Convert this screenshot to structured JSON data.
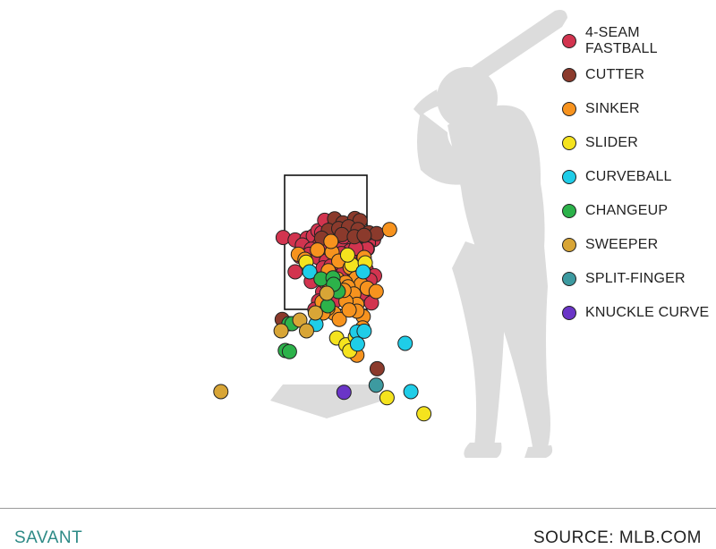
{
  "chart_data": {
    "type": "scatter",
    "title": "",
    "xlabel": "",
    "ylabel": "",
    "legend_position": "top-right",
    "background": "batter silhouette with strike zone and home plate",
    "series": [
      {
        "name": "4-SEAM FASTBALL",
        "color": "#d2344f",
        "points": [
          [
            -0.82,
            3.51
          ],
          [
            -0.59,
            3.44
          ],
          [
            -0.36,
            3.49
          ],
          [
            -0.24,
            3.55
          ],
          [
            -0.15,
            3.7
          ],
          [
            -0.08,
            3.64
          ],
          [
            0.08,
            3.88
          ],
          [
            0.18,
            3.92
          ],
          [
            0.29,
            3.86
          ],
          [
            0.38,
            3.82
          ],
          [
            -0.02,
            3.99
          ],
          [
            0.12,
            3.76
          ],
          [
            0.2,
            3.67
          ],
          [
            0.32,
            3.69
          ],
          [
            0.45,
            3.72
          ],
          [
            0.53,
            3.62
          ],
          [
            0.62,
            3.58
          ],
          [
            0.74,
            3.49
          ],
          [
            0.84,
            3.54
          ],
          [
            0.92,
            3.45
          ],
          [
            -0.12,
            3.31
          ],
          [
            0.06,
            3.35
          ],
          [
            0.22,
            3.28
          ],
          [
            0.37,
            3.42
          ],
          [
            0.52,
            3.36
          ],
          [
            0.68,
            3.31
          ],
          [
            0.82,
            3.36
          ],
          [
            -0.45,
            3.3
          ],
          [
            -0.28,
            3.18
          ],
          [
            -0.06,
            3.17
          ],
          [
            0.15,
            3.09
          ],
          [
            0.32,
            3.19
          ],
          [
            0.47,
            3.14
          ],
          [
            0.65,
            3.17
          ],
          [
            0.8,
            3.19
          ],
          [
            -0.5,
            2.98
          ],
          [
            -0.32,
            3.04
          ],
          [
            -0.15,
            2.95
          ],
          [
            0.01,
            2.85
          ],
          [
            0.24,
            2.9
          ],
          [
            0.41,
            2.92
          ],
          [
            0.63,
            2.9
          ],
          [
            0.73,
            2.99
          ],
          [
            -0.05,
            2.66
          ],
          [
            0.1,
            2.71
          ],
          [
            0.26,
            2.58
          ],
          [
            0.45,
            2.61
          ],
          [
            0.6,
            2.73
          ],
          [
            0.78,
            2.61
          ],
          [
            0.94,
            2.44
          ],
          [
            -0.28,
            2.28
          ],
          [
            0.0,
            2.4
          ],
          [
            0.12,
            2.45
          ],
          [
            0.34,
            2.52
          ],
          [
            0.55,
            2.37
          ],
          [
            0.65,
            2.48
          ],
          [
            0.85,
            2.32
          ],
          [
            -0.59,
            2.55
          ],
          [
            -0.06,
            1.99
          ],
          [
            0.07,
            1.86
          ],
          [
            -0.14,
            1.73
          ],
          [
            0.36,
            1.81
          ],
          [
            0.5,
            1.62
          ],
          [
            0.69,
            1.94
          ],
          [
            0.88,
            1.68
          ],
          [
            0.19,
            1.75
          ],
          [
            0.28,
            2.22
          ],
          [
            -0.21,
            1.5
          ],
          [
            0.79,
            3.19
          ],
          [
            0.16,
            3.56
          ],
          [
            0.34,
            3.53
          ],
          [
            -0.02,
            2.28
          ],
          [
            0.58,
            3.21
          ],
          [
            0.3,
            3.06
          ]
        ]
      },
      {
        "name": "CUTTER",
        "color": "#8b3a2c",
        "points": [
          [
            0.17,
            4.03
          ],
          [
            0.33,
            3.92
          ],
          [
            0.56,
            4.04
          ],
          [
            0.66,
            3.98
          ],
          [
            0.05,
            3.71
          ],
          [
            0.25,
            3.76
          ],
          [
            0.44,
            3.81
          ],
          [
            0.62,
            3.73
          ],
          [
            0.83,
            3.64
          ],
          [
            0.98,
            3.62
          ],
          [
            -0.08,
            3.49
          ],
          [
            0.31,
            3.59
          ],
          [
            0.55,
            3.53
          ],
          [
            0.74,
            3.57
          ],
          [
            -0.84,
            1.22
          ],
          [
            0.99,
            -0.16
          ]
        ]
      },
      {
        "name": "SINKER",
        "color": "#f7931e",
        "points": [
          [
            1.23,
            3.73
          ],
          [
            -0.53,
            3.04
          ],
          [
            -0.16,
            3.16
          ],
          [
            0.12,
            3.1
          ],
          [
            0.25,
            2.85
          ],
          [
            0.47,
            2.67
          ],
          [
            0.58,
            2.37
          ],
          [
            0.68,
            2.2
          ],
          [
            0.8,
            2.09
          ],
          [
            0.97,
            2.0
          ],
          [
            0.22,
            2.35
          ],
          [
            0.38,
            2.25
          ],
          [
            0.08,
            2.1
          ],
          [
            0.43,
            2.13
          ],
          [
            0.54,
            1.93
          ],
          [
            0.6,
            1.64
          ],
          [
            0.39,
            1.72
          ],
          [
            0.16,
            1.39
          ],
          [
            0.72,
            1.3
          ],
          [
            0.71,
            0.98
          ],
          [
            0.6,
            1.45
          ],
          [
            0.74,
            2.95
          ],
          [
            0.04,
            1.53
          ],
          [
            -0.07,
            1.71
          ],
          [
            0.26,
            1.22
          ],
          [
            0.35,
            2.03
          ],
          [
            0.45,
            1.48
          ],
          [
            0.6,
            0.22
          ],
          [
            0.05,
            2.58
          ],
          [
            -0.4,
            2.9
          ],
          [
            -0.05,
            1.4
          ],
          [
            0.1,
            3.4
          ]
        ]
      },
      {
        "name": "SLIDER",
        "color": "#f5e31e",
        "points": [
          [
            0.5,
            2.75
          ],
          [
            -0.38,
            2.82
          ],
          [
            0.21,
            0.7
          ],
          [
            0.39,
            0.51
          ],
          [
            0.46,
            0.34
          ],
          [
            0.57,
            0.73
          ],
          [
            1.18,
            -0.97
          ],
          [
            1.89,
            -1.42
          ],
          [
            0.76,
            2.8
          ],
          [
            0.42,
            3.02
          ]
        ]
      },
      {
        "name": "CURVEBALL",
        "color": "#1fcde8",
        "points": [
          [
            0.72,
            2.55
          ],
          [
            -0.31,
            2.55
          ],
          [
            -0.19,
            1.08
          ],
          [
            0.6,
            0.87
          ],
          [
            0.74,
            0.89
          ],
          [
            0.61,
            0.53
          ],
          [
            1.53,
            0.55
          ],
          [
            1.64,
            -0.8
          ]
        ]
      },
      {
        "name": "CHANGEUP",
        "color": "#2cb24a",
        "points": [
          [
            -0.09,
            2.35
          ],
          [
            0.14,
            2.38
          ],
          [
            0.24,
            2.0
          ],
          [
            0.04,
            1.6
          ],
          [
            -0.71,
            1.1
          ],
          [
            -0.65,
            1.1
          ],
          [
            -0.78,
            0.35
          ],
          [
            -0.7,
            0.32
          ],
          [
            0.15,
            2.2
          ]
        ]
      },
      {
        "name": "SWEEPER",
        "color": "#d8a536",
        "points": [
          [
            -0.86,
            0.9
          ],
          [
            0.02,
            1.95
          ],
          [
            -0.2,
            1.4
          ],
          [
            -0.5,
            1.2
          ],
          [
            -0.37,
            0.9
          ],
          [
            -2.02,
            -0.8
          ]
        ]
      },
      {
        "name": "SPLIT-FINGER",
        "color": "#3d9aa0",
        "points": [
          [
            0.97,
            -0.62
          ]
        ]
      },
      {
        "name": "KNUCKLE CURVE",
        "color": "#6a35c7",
        "points": [
          [
            0.35,
            -0.82
          ]
        ]
      }
    ]
  },
  "footer": {
    "left": "SAVANT",
    "right": "SOURCE: MLB.COM"
  }
}
